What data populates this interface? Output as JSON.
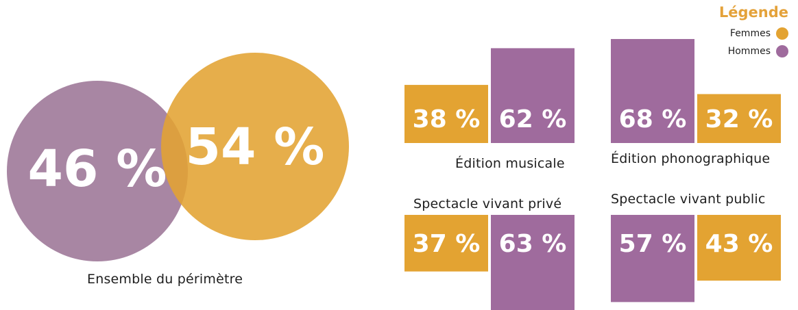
{
  "colors": {
    "femmes": "#e3a332",
    "hommes": "#9f6b9d",
    "venn_hommes": "#9c7596"
  },
  "legend": {
    "title": "Légende",
    "items": [
      {
        "label": "Femmes",
        "color": "#e3a332"
      },
      {
        "label": "Hommes",
        "color": "#9f6b9d"
      }
    ]
  },
  "chart_data": [
    {
      "type": "venn",
      "caption": "Ensemble du périmètre",
      "series": [
        {
          "name": "Hommes",
          "value": 46,
          "label": "46 %"
        },
        {
          "name": "Femmes",
          "value": 54,
          "label": "54 %"
        }
      ]
    },
    {
      "type": "bar",
      "caption": "Édition musicale",
      "series": [
        {
          "name": "Femmes",
          "value": 38,
          "label": "38 %"
        },
        {
          "name": "Hommes",
          "value": 62,
          "label": "62 %"
        }
      ]
    },
    {
      "type": "bar",
      "caption": "Édition phonographique",
      "series": [
        {
          "name": "Hommes",
          "value": 68,
          "label": "68  %"
        },
        {
          "name": "Femmes",
          "value": 32,
          "label": "32 %"
        }
      ]
    },
    {
      "type": "bar",
      "caption": "Spectacle vivant privé",
      "series": [
        {
          "name": "Femmes",
          "value": 37,
          "label": "37 %"
        },
        {
          "name": "Hommes",
          "value": 63,
          "label": "63 %"
        }
      ]
    },
    {
      "type": "bar",
      "caption": "Spectacle vivant public",
      "series": [
        {
          "name": "Hommes",
          "value": 57,
          "label": "57  %"
        },
        {
          "name": "Femmes",
          "value": 43,
          "label": "43 %"
        }
      ]
    }
  ]
}
